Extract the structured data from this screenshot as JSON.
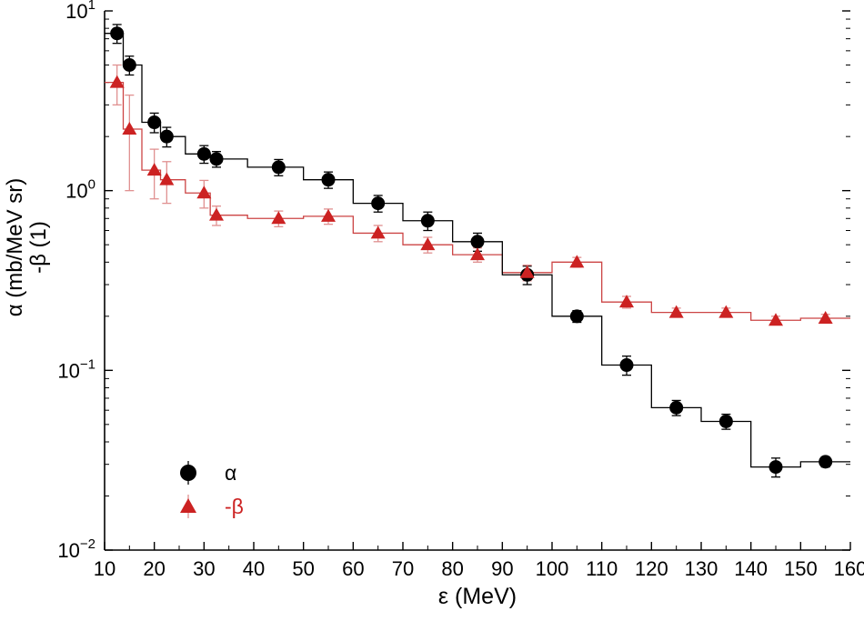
{
  "figure": {
    "background": "#ffffff"
  },
  "chart_data": {
    "type": "scatter",
    "style": "log-y scatter with step-histogram lines and error bars",
    "title": "",
    "xlabel": "ε (MeV)",
    "ylabel_lines": [
      "α (mb/MeV sr)",
      "-β (1)"
    ],
    "xlim": [
      10,
      160
    ],
    "x_major_step": 10,
    "x_minor_step": 5,
    "y_scale": "log",
    "y_exponent_range": [
      -2,
      1
    ],
    "grid": false,
    "legend_position": "lower-left",
    "legend": {
      "items": [
        {
          "label": "α",
          "marker": "circle",
          "color": "#000000"
        },
        {
          "label": "-β",
          "marker": "triangle",
          "color": "#cc2222"
        }
      ]
    },
    "series": [
      {
        "name": "α",
        "marker": "circle",
        "color": "#000000",
        "line_color": "#000000",
        "err_color": "#000000",
        "x": [
          12.5,
          15,
          20,
          22.5,
          30,
          32.5,
          45,
          55,
          65,
          75,
          85,
          95,
          105,
          115,
          125,
          135,
          145,
          155
        ],
        "y": [
          7.5,
          5.0,
          2.4,
          2.0,
          1.6,
          1.5,
          1.35,
          1.15,
          0.85,
          0.68,
          0.52,
          0.34,
          0.2,
          0.107,
          0.062,
          0.052,
          0.029,
          0.031
        ],
        "yerr": [
          0.9,
          0.6,
          0.3,
          0.25,
          0.18,
          0.15,
          0.14,
          0.12,
          0.09,
          0.08,
          0.06,
          0.04,
          0.015,
          0.013,
          0.006,
          0.005,
          0.0035,
          0.002
        ]
      },
      {
        "name": "-β",
        "marker": "triangle",
        "color": "#cc2222",
        "line_color": "#cc4444",
        "err_color": "#e09090",
        "x": [
          12.5,
          15,
          20,
          22.5,
          30,
          32.5,
          45,
          55,
          65,
          75,
          85,
          95,
          105,
          115,
          125,
          135,
          145,
          155
        ],
        "y": [
          4.0,
          2.2,
          1.3,
          1.15,
          0.97,
          0.73,
          0.7,
          0.72,
          0.58,
          0.5,
          0.44,
          0.35,
          0.4,
          0.24,
          0.21,
          0.21,
          0.19,
          0.195
        ],
        "yerr": [
          1.0,
          1.2,
          0.4,
          0.3,
          0.17,
          0.09,
          0.07,
          0.07,
          0.06,
          0.05,
          0.04,
          0.035,
          0.025,
          0.018,
          0.012,
          0.012,
          0.01,
          0.01
        ]
      }
    ]
  }
}
